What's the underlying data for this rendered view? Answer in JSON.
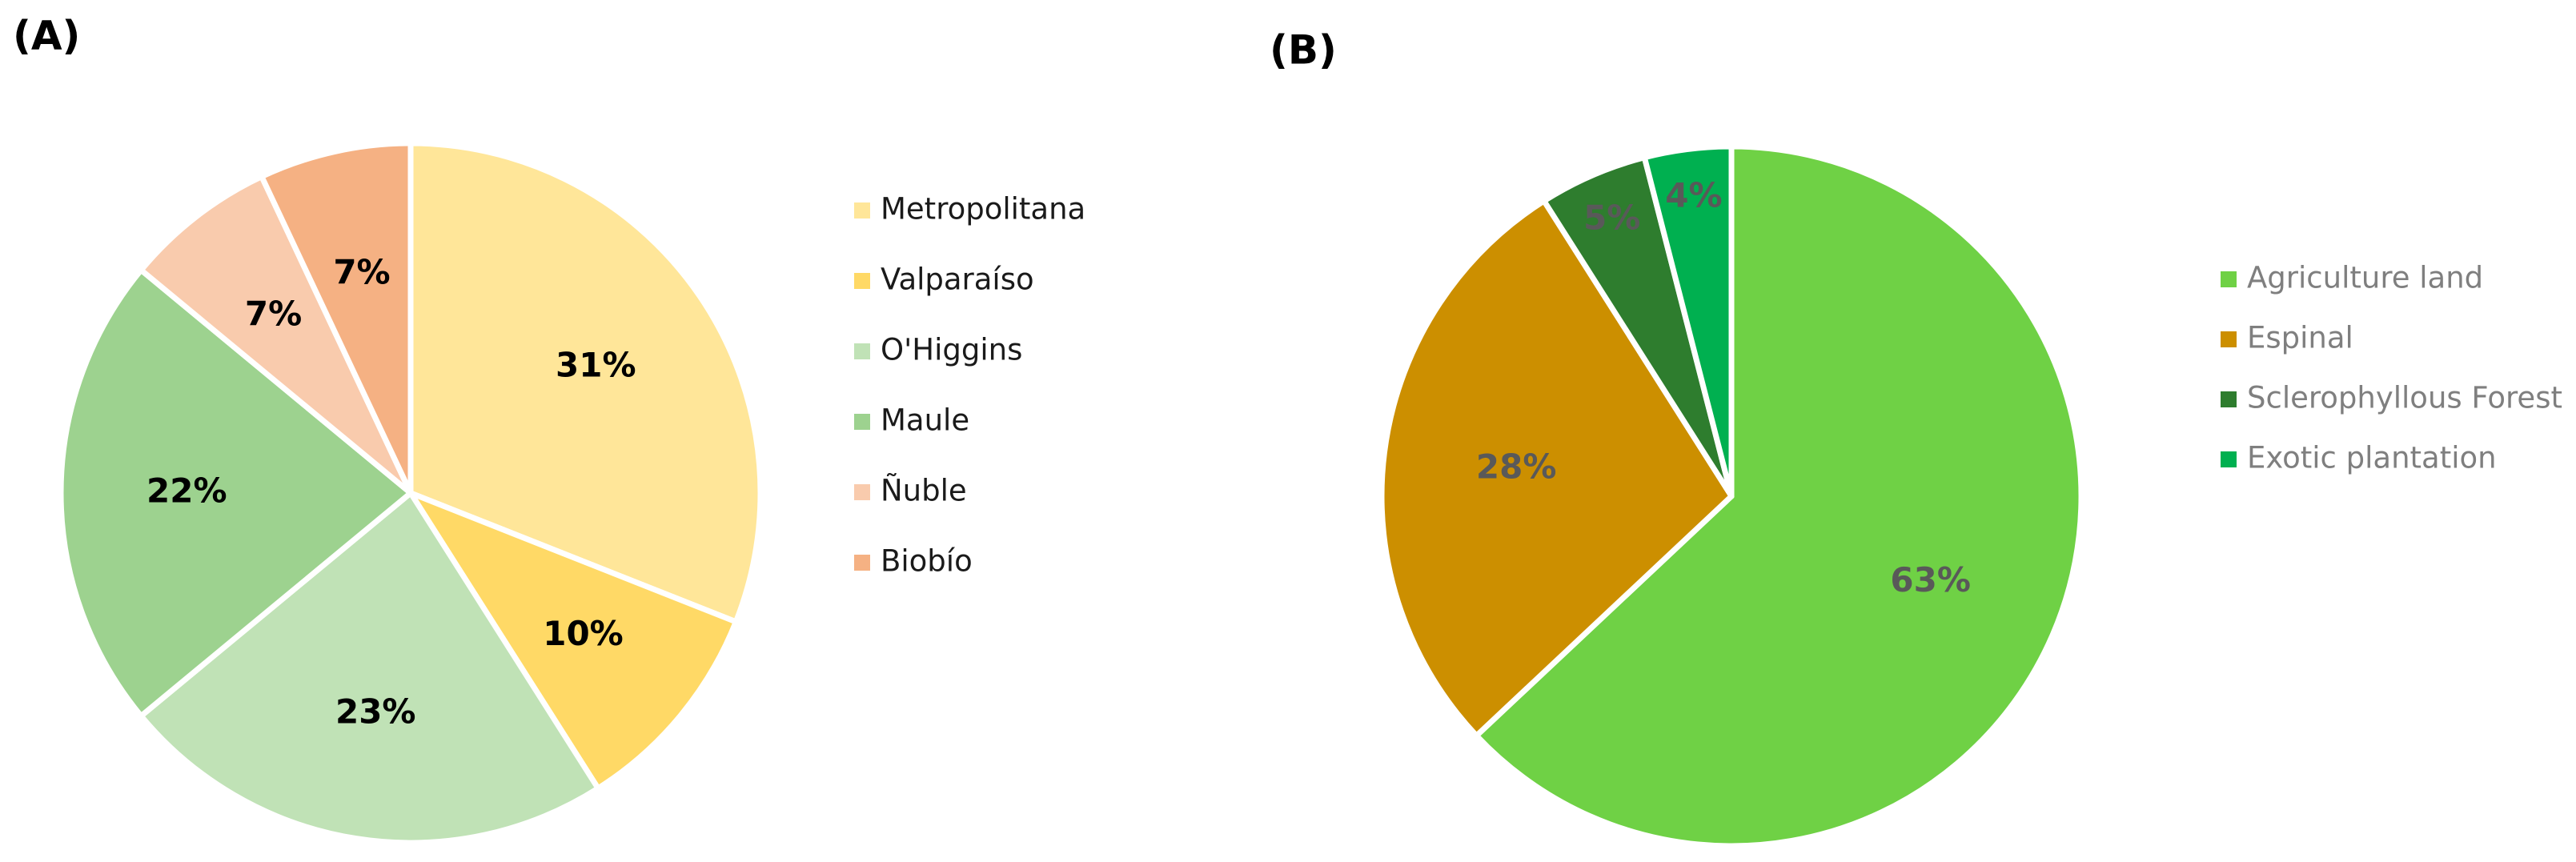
{
  "chart_data": [
    {
      "type": "pie",
      "title": "(A)",
      "categories": [
        "Metropolitana",
        "Valparaíso",
        "O'Higgins",
        "Maule",
        "Ñuble",
        "Biobío"
      ],
      "values": [
        31,
        10,
        23,
        22,
        7,
        7
      ],
      "value_labels": [
        "31%",
        "10%",
        "23%",
        "22%",
        "7%",
        "7%"
      ],
      "colors": [
        "#FFE699",
        "#FFD966",
        "#C0E2B6",
        "#9DD28F",
        "#F9CBAD",
        "#F5B183"
      ],
      "legend": "right"
    },
    {
      "type": "pie",
      "title": "(B)",
      "categories": [
        "Agriculture land",
        "Espinal",
        "Sclerophyllous Forest",
        "Exotic plantation"
      ],
      "values": [
        63,
        28,
        5,
        4
      ],
      "value_labels": [
        "63%",
        "28%",
        "5%",
        "4%"
      ],
      "colors": [
        "#6FD145",
        "#CC8F00",
        "#2E7D2E",
        "#00B050"
      ],
      "legend": "right"
    }
  ]
}
